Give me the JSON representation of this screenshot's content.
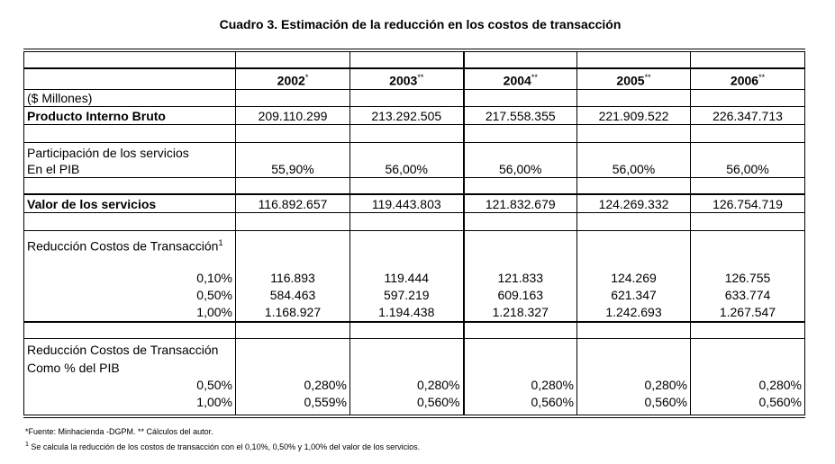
{
  "title": "Cuadro 3.  Estimación de la reducción en los costos de transacción",
  "years": [
    {
      "year": "2002",
      "mark": "*"
    },
    {
      "year": "2003",
      "mark": "**"
    },
    {
      "year": "2004",
      "mark": "**"
    },
    {
      "year": "2005",
      "mark": "**"
    },
    {
      "year": "2006",
      "mark": "**"
    }
  ],
  "units": "($ Millones)",
  "pib": {
    "label": "Producto Interno Bruto",
    "values": [
      "209.110.299",
      "213.292.505",
      "217.558.355",
      "221.909.522",
      "226.347.713"
    ]
  },
  "participacion": {
    "label1": "Participación de los servicios",
    "label2": "En el PIB",
    "values": [
      "55,90%",
      "56,00%",
      "56,00%",
      "56,00%",
      "56,00%"
    ]
  },
  "valor": {
    "label": "Valor de los servicios",
    "values": [
      "116.892.657",
      "119.443.803",
      "121.832.679",
      "124.269.332",
      "126.754.719"
    ]
  },
  "reduccion": {
    "label": "Reducción Costos de Transacción",
    "sup": "1",
    "rates": [
      "0,10%",
      "0,50%",
      "1,00%"
    ],
    "values": [
      [
        "116.893",
        "584.463",
        "1.168.927"
      ],
      [
        "119.444",
        "597.219",
        "1.194.438"
      ],
      [
        "121.833",
        "609.163",
        "1.218.327"
      ],
      [
        "124.269",
        "621.347",
        "1.242.693"
      ],
      [
        "126.755",
        "633.774",
        "1.267.547"
      ]
    ]
  },
  "reduccion_pib": {
    "label1": "Reducción Costos de Transacción",
    "label2": "Como % del PIB",
    "rates": [
      "0,50%",
      "1,00%"
    ],
    "values": [
      [
        "0,280%",
        "0,559%"
      ],
      [
        "0,280%",
        "0,560%"
      ],
      [
        "0,280%",
        "0,560%"
      ],
      [
        "0,280%",
        "0,560%"
      ],
      [
        "0,280%",
        "0,560%"
      ]
    ]
  },
  "footnotes": [
    "*Fuente: Minhacienda -DGPM. ** Cálculos del autor.",
    "Se calcula la reducción de los costos de transacción con el 0,10%, 0,50% y 1,00% del valor de los servicios."
  ],
  "footnote_mark": "1"
}
